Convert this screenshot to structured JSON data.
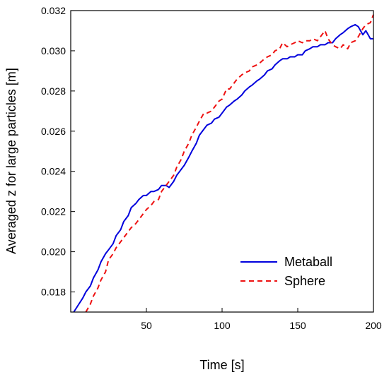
{
  "chart_data": {
    "type": "line",
    "xlabel": "Time [s]",
    "ylabel": "Averaged z for large particles [m]",
    "xlim": [
      0,
      200
    ],
    "ylim": [
      0.017,
      0.032
    ],
    "x_ticks": [
      "50",
      "100",
      "150",
      "200"
    ],
    "y_ticks": [
      "0.018",
      "0.020",
      "0.022",
      "0.024",
      "0.026",
      "0.028",
      "0.030",
      "0.032"
    ],
    "grid": false,
    "legend_position": "lower-right",
    "series": [
      {
        "name": "Metaball",
        "color": "#0000dd",
        "style": "solid",
        "x": [
          2,
          5,
          8,
          10,
          13,
          15,
          18,
          20,
          23,
          25,
          28,
          30,
          33,
          35,
          38,
          40,
          43,
          45,
          48,
          50,
          53,
          55,
          58,
          60,
          63,
          65,
          68,
          70,
          73,
          75,
          78,
          80,
          83,
          85,
          88,
          90,
          93,
          95,
          98,
          100,
          103,
          105,
          108,
          110,
          113,
          115,
          118,
          120,
          123,
          125,
          128,
          130,
          133,
          135,
          138,
          140,
          143,
          145,
          148,
          150,
          153,
          155,
          158,
          160,
          163,
          165,
          168,
          170,
          173,
          175,
          178,
          180,
          183,
          185,
          188,
          190,
          193,
          195,
          198,
          200
        ],
        "values": [
          0.017,
          0.01735,
          0.0177,
          0.018,
          0.0183,
          0.0187,
          0.0191,
          0.0195,
          0.0199,
          0.0201,
          0.0204,
          0.0208,
          0.0211,
          0.0215,
          0.0218,
          0.0222,
          0.0224,
          0.0226,
          0.0228,
          0.0228,
          0.023,
          0.023,
          0.0231,
          0.0233,
          0.0233,
          0.0232,
          0.0235,
          0.0238,
          0.0241,
          0.0243,
          0.0247,
          0.025,
          0.0254,
          0.0258,
          0.0261,
          0.0263,
          0.0264,
          0.0266,
          0.0267,
          0.0269,
          0.0272,
          0.0273,
          0.0275,
          0.0276,
          0.0278,
          0.028,
          0.0282,
          0.0283,
          0.0285,
          0.0286,
          0.0288,
          0.029,
          0.0291,
          0.0293,
          0.0295,
          0.0296,
          0.0296,
          0.0297,
          0.0297,
          0.0298,
          0.0298,
          0.03,
          0.0301,
          0.0302,
          0.0302,
          0.0303,
          0.0303,
          0.0304,
          0.0304,
          0.0306,
          0.0308,
          0.0309,
          0.0311,
          0.0312,
          0.0313,
          0.0312,
          0.0308,
          0.031,
          0.0306,
          0.0306
        ]
      },
      {
        "name": "Sphere",
        "color": "#ee1111",
        "style": "dashed",
        "x": [
          10,
          13,
          15,
          18,
          20,
          23,
          25,
          28,
          30,
          33,
          35,
          38,
          40,
          43,
          45,
          48,
          50,
          53,
          55,
          58,
          60,
          63,
          65,
          68,
          70,
          73,
          75,
          78,
          80,
          83,
          85,
          88,
          90,
          93,
          95,
          98,
          100,
          103,
          105,
          108,
          110,
          113,
          115,
          118,
          120,
          123,
          125,
          128,
          130,
          133,
          135,
          138,
          140,
          143,
          145,
          148,
          150,
          153,
          155,
          158,
          160,
          163,
          165,
          168,
          170,
          173,
          175,
          178,
          180,
          183,
          185,
          188,
          190,
          193,
          195,
          198,
          200
        ],
        "values": [
          0.017,
          0.0174,
          0.0178,
          0.0182,
          0.0186,
          0.019,
          0.0196,
          0.0199,
          0.0202,
          0.0205,
          0.0207,
          0.021,
          0.0212,
          0.0214,
          0.0216,
          0.0219,
          0.0221,
          0.0223,
          0.0225,
          0.0226,
          0.023,
          0.0233,
          0.0235,
          0.0238,
          0.0242,
          0.0246,
          0.025,
          0.0254,
          0.0258,
          0.0262,
          0.0265,
          0.0269,
          0.0269,
          0.027,
          0.0272,
          0.0275,
          0.0276,
          0.0281,
          0.0281,
          0.0284,
          0.0286,
          0.0288,
          0.0289,
          0.029,
          0.0292,
          0.0293,
          0.0294,
          0.0296,
          0.0297,
          0.0298,
          0.03,
          0.0301,
          0.0304,
          0.0302,
          0.0303,
          0.0304,
          0.0305,
          0.0304,
          0.0305,
          0.0305,
          0.0306,
          0.0305,
          0.0307,
          0.031,
          0.0306,
          0.0303,
          0.0302,
          0.0301,
          0.0303,
          0.0301,
          0.0304,
          0.0305,
          0.0307,
          0.0311,
          0.0313,
          0.0314,
          0.0318
        ]
      }
    ]
  }
}
